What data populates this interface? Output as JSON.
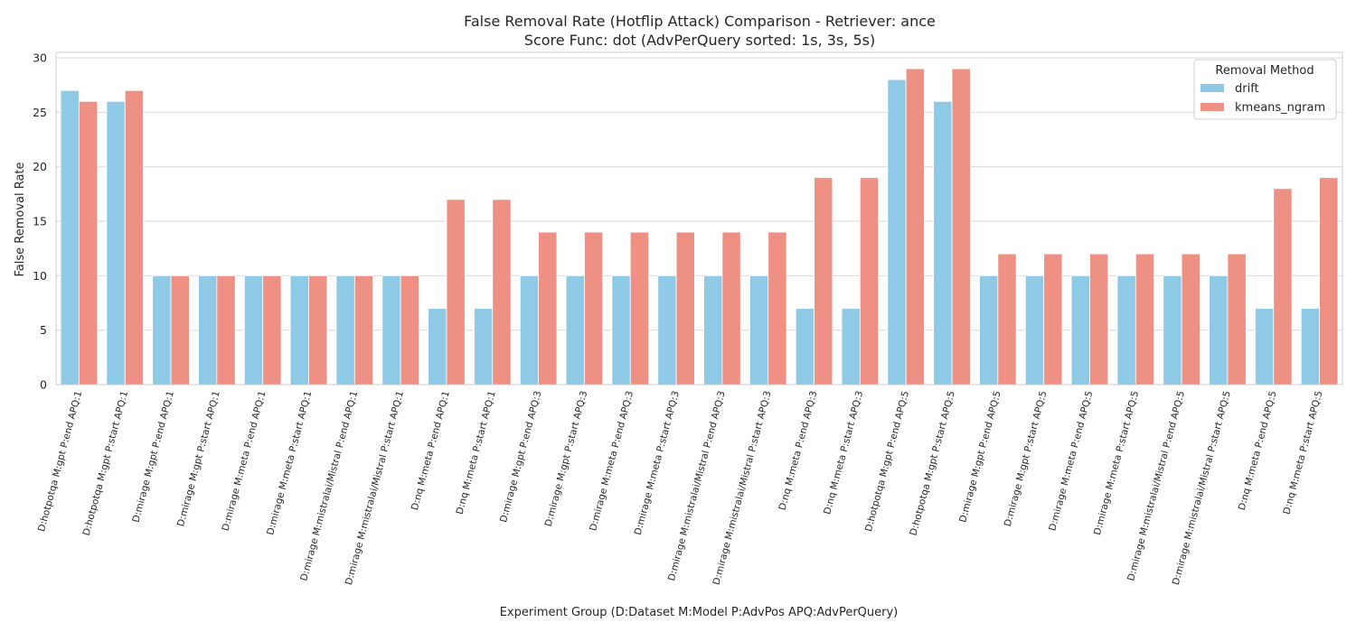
{
  "chart_data": {
    "type": "bar",
    "title_lines": [
      "False Removal Rate (Hotflip Attack) Comparison - Retriever: ance",
      "Score Func: dot (AdvPerQuery sorted: 1s, 3s, 5s)"
    ],
    "xlabel": "Experiment Group (D:Dataset M:Model P:AdvPos APQ:AdvPerQuery)",
    "ylabel": "False Removal Rate",
    "ylim": [
      0,
      30.5
    ],
    "yticks": [
      0,
      5,
      10,
      15,
      20,
      25,
      30
    ],
    "grid": "horizontal",
    "legend": {
      "title": "Removal Method",
      "placement": "top-right"
    },
    "categories": [
      "D:hotpotqa M:gpt P:end APQ:1",
      "D:hotpotqa M:gpt P:start APQ:1",
      "D:mirage M:gpt P:end APQ:1",
      "D:mirage M:gpt P:start APQ:1",
      "D:mirage M:meta P:end APQ:1",
      "D:mirage M:meta P:start APQ:1",
      "D:mirage M:mistralai/Mistral P:end APQ:1",
      "D:mirage M:mistralai/Mistral P:start APQ:1",
      "D:nq M:meta P:end APQ:1",
      "D:nq M:meta P:start APQ:1",
      "D:mirage M:gpt P:end APQ:3",
      "D:mirage M:gpt P:start APQ:3",
      "D:mirage M:meta P:end APQ:3",
      "D:mirage M:meta P:start APQ:3",
      "D:mirage M:mistralai/Mistral P:end APQ:3",
      "D:mirage M:mistralai/Mistral P:start APQ:3",
      "D:nq M:meta P:end APQ:3",
      "D:nq M:meta P:start APQ:3",
      "D:hotpotqa M:gpt P:end APQ:5",
      "D:hotpotqa M:gpt P:start APQ:5",
      "D:mirage M:gpt P:end APQ:5",
      "D:mirage M:gpt P:start APQ:5",
      "D:mirage M:meta P:end APQ:5",
      "D:mirage M:meta P:start APQ:5",
      "D:mirage M:mistralai/Mistral P:end APQ:5",
      "D:mirage M:mistralai/Mistral P:start APQ:5",
      "D:nq M:meta P:end APQ:5",
      "D:nq M:meta P:start APQ:5"
    ],
    "series": [
      {
        "name": "drift",
        "color": "#8ecae6",
        "values": [
          27,
          26,
          10,
          10,
          10,
          10,
          10,
          10,
          7,
          7,
          10,
          10,
          10,
          10,
          10,
          10,
          7,
          7,
          28,
          26,
          10,
          10,
          10,
          10,
          10,
          10,
          7,
          7
        ]
      },
      {
        "name": "kmeans_ngram",
        "color": "#ee9084",
        "values": [
          26,
          27,
          10,
          10,
          10,
          10,
          10,
          10,
          17,
          17,
          14,
          14,
          14,
          14,
          14,
          14,
          19,
          19,
          29,
          29,
          12,
          12,
          12,
          12,
          12,
          12,
          18,
          19
        ]
      }
    ]
  }
}
